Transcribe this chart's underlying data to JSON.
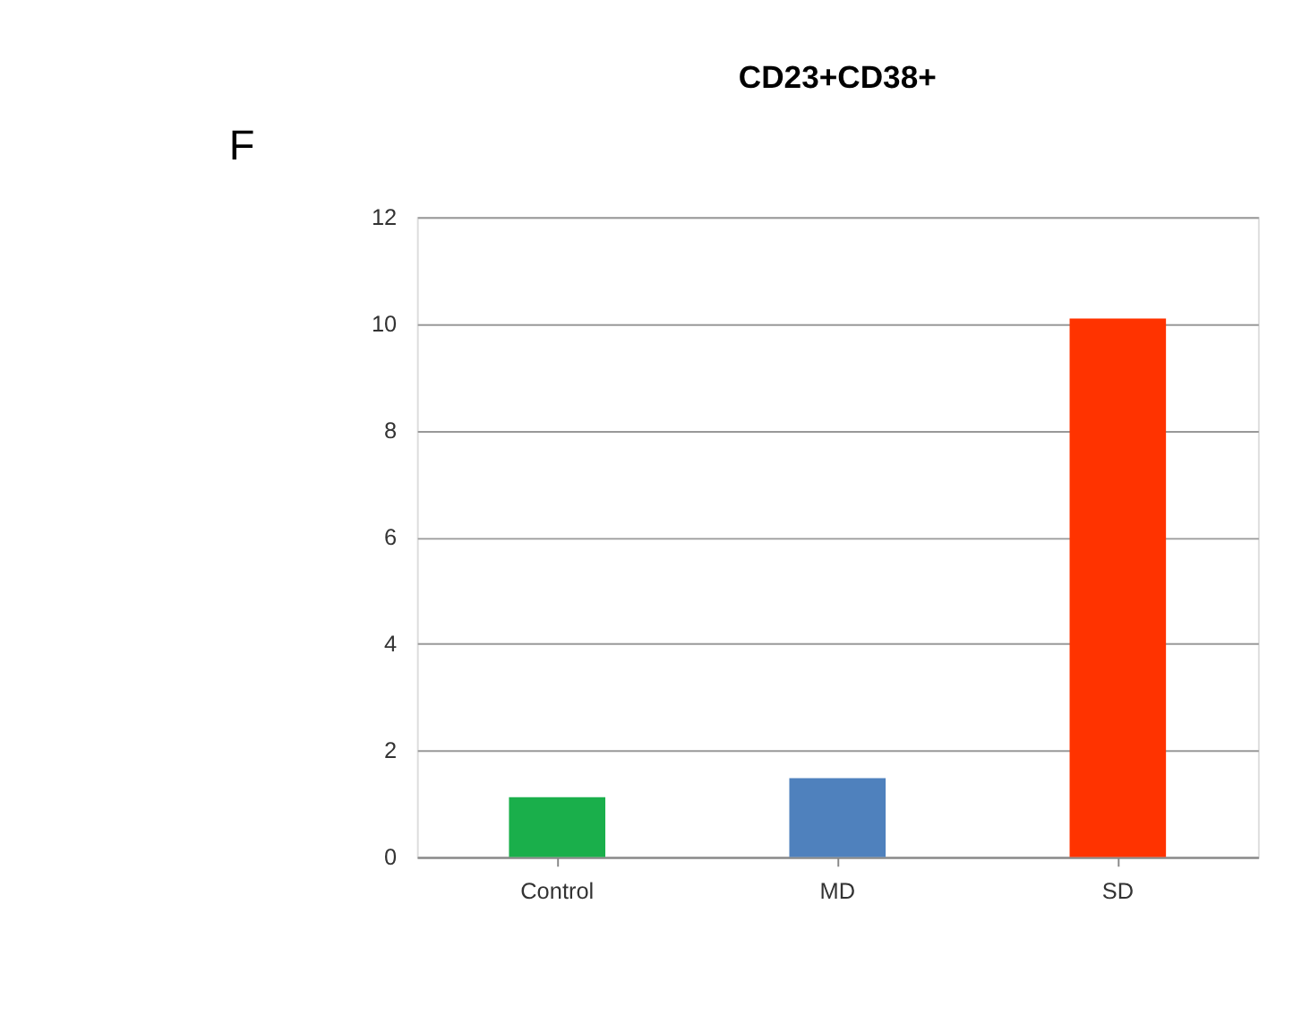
{
  "chart_data": {
    "type": "bar",
    "title": "CD23+CD38+",
    "categories": [
      "Control",
      "MD",
      "SD"
    ],
    "values": [
      1.12,
      1.48,
      10.1
    ],
    "colors": [
      "#1aaf4b",
      "#4f81bd",
      "#ff3300"
    ],
    "ylim": [
      0,
      12
    ],
    "yticks": [
      0,
      2,
      4,
      6,
      8,
      10,
      12
    ],
    "grid": "y",
    "annotations": [
      "F"
    ]
  }
}
